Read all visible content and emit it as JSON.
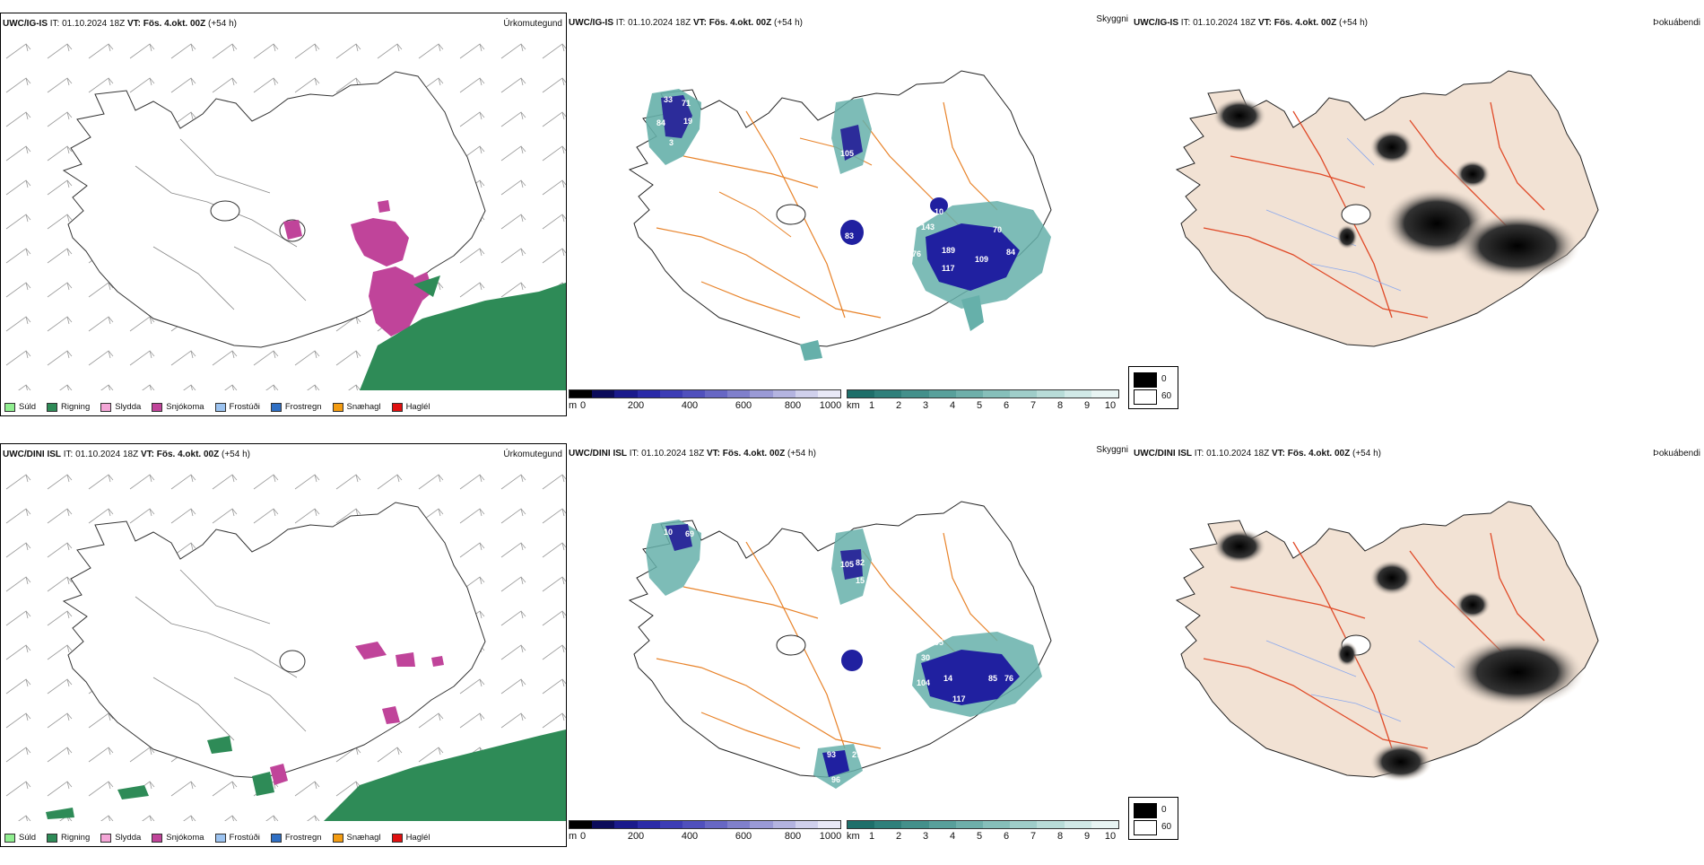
{
  "rows": [
    {
      "model": "UWC/IG-IS",
      "it_label": "IT:",
      "it_value": "01.10.2024 18Z",
      "vt_label": "VT:",
      "vt_value": "Fös. 4.okt. 00Z",
      "lead": "(+54 h)",
      "precip_title": "Úrkomutegund",
      "vis_title": "Skyggni",
      "fog_title": "Þokuábendi",
      "vis_labels": [
        "33",
        "71",
        "19",
        "84",
        "3",
        "105",
        "93",
        "10",
        "143",
        "83",
        "76",
        "189",
        "117",
        "109",
        "70",
        "84",
        "270"
      ]
    },
    {
      "model": "UWC/DINI ISL",
      "it_label": "IT:",
      "it_value": "01.10.2024 18Z",
      "vt_label": "VT:",
      "vt_value": "Fös. 4.okt. 00Z",
      "lead": "(+54 h)",
      "precip_title": "Úrkomutegund",
      "vis_title": "Skyggni",
      "fog_title": "Þokuábendi",
      "vis_labels": [
        "10",
        "69",
        "105",
        "82",
        "15",
        "95",
        "30",
        "104",
        "14",
        "85",
        "76",
        "117",
        "16",
        "93",
        "271",
        "96"
      ]
    }
  ],
  "precip_legend": [
    {
      "label": "Súld",
      "color": "#90ee90"
    },
    {
      "label": "Rigning",
      "color": "#2e8b57"
    },
    {
      "label": "Slydda",
      "color": "#f4a6d7"
    },
    {
      "label": "Snjókoma",
      "color": "#c0449a"
    },
    {
      "label": "Frostúði",
      "color": "#9cc3f0"
    },
    {
      "label": "Frostregn",
      "color": "#2f6fc4"
    },
    {
      "label": "Snæhagl",
      "color": "#f39c12"
    },
    {
      "label": "Haglél",
      "color": "#e01010"
    }
  ],
  "height_bar": {
    "unit": "m",
    "ticks": [
      "0",
      "200",
      "400",
      "600",
      "800",
      "1000"
    ],
    "colors": [
      "#000000",
      "#0b0b5a",
      "#1a1a8c",
      "#2b2ba8",
      "#3d3db5",
      "#5050bd",
      "#6767c4",
      "#8080cc",
      "#9a9ad6",
      "#b4b4e0",
      "#d0d0ec",
      "#e8e8f6"
    ]
  },
  "km_bar": {
    "unit": "km",
    "ticks": [
      "1",
      "2",
      "3",
      "4",
      "5",
      "6",
      "7",
      "8",
      "9",
      "10"
    ],
    "colors": [
      "#1e6f6a",
      "#2f807b",
      "#43908b",
      "#58a09b",
      "#6eafaa",
      "#86bfba",
      "#9fcdc9",
      "#b8dcd8",
      "#d1e9e7",
      "#e8f4f3"
    ]
  },
  "fog_legend": [
    {
      "label": "0",
      "color": "#000000"
    },
    {
      "label": "60",
      "color": "#ffffff"
    }
  ]
}
